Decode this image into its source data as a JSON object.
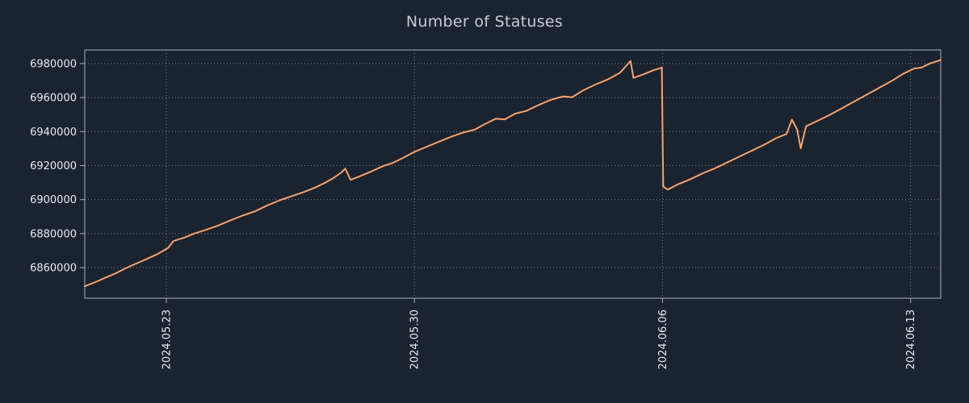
{
  "colors": {
    "background": "#1a2330",
    "frame": "#a8b0ba",
    "grid": "#9aa3ad",
    "tick_text": "#e8ecf0",
    "title_text": "#c6ccd4",
    "line": "#f8a269"
  },
  "chart_data": {
    "type": "line",
    "title": "Number of Statuses",
    "xlabel": "",
    "ylabel": "",
    "legend": false,
    "grid": "dotted",
    "x_unit": "days since 2024-05-21 00:00",
    "xlim": [
      -0.3,
      23.85
    ],
    "ylim": [
      6842000,
      6988000
    ],
    "y_ticks": [
      6860000,
      6880000,
      6900000,
      6920000,
      6940000,
      6960000,
      6980000
    ],
    "x_ticks": [
      {
        "pos": 2,
        "label": "2024.05.23"
      },
      {
        "pos": 9,
        "label": "2024.05.30"
      },
      {
        "pos": 16,
        "label": "2024.06.06"
      },
      {
        "pos": 23,
        "label": "2024.06.13"
      }
    ],
    "series": [
      {
        "name": "statuses",
        "color": "#f8a269",
        "points": [
          [
            -0.3,
            6849000
          ],
          [
            0.0,
            6851500
          ],
          [
            0.25,
            6853800
          ],
          [
            0.55,
            6856400
          ],
          [
            0.85,
            6859600
          ],
          [
            1.15,
            6862400
          ],
          [
            1.45,
            6865100
          ],
          [
            1.75,
            6868000
          ],
          [
            2.05,
            6871600
          ],
          [
            2.2,
            6875600
          ],
          [
            2.5,
            6877600
          ],
          [
            2.8,
            6880100
          ],
          [
            3.1,
            6882100
          ],
          [
            3.45,
            6884600
          ],
          [
            3.8,
            6887700
          ],
          [
            4.15,
            6890600
          ],
          [
            4.5,
            6893100
          ],
          [
            4.85,
            6896600
          ],
          [
            5.2,
            6899600
          ],
          [
            5.55,
            6902100
          ],
          [
            5.9,
            6904600
          ],
          [
            6.2,
            6907100
          ],
          [
            6.5,
            6910100
          ],
          [
            6.75,
            6913100
          ],
          [
            6.95,
            6916200
          ],
          [
            7.05,
            6918200
          ],
          [
            7.2,
            6911600
          ],
          [
            7.5,
            6914100
          ],
          [
            7.8,
            6916700
          ],
          [
            8.1,
            6919600
          ],
          [
            8.4,
            6921700
          ],
          [
            8.7,
            6924700
          ],
          [
            9.0,
            6928100
          ],
          [
            9.35,
            6931100
          ],
          [
            9.7,
            6934100
          ],
          [
            10.05,
            6937100
          ],
          [
            10.4,
            6939600
          ],
          [
            10.7,
            6941100
          ],
          [
            11.0,
            6944600
          ],
          [
            11.3,
            6947600
          ],
          [
            11.55,
            6947200
          ],
          [
            11.85,
            6950600
          ],
          [
            12.15,
            6952100
          ],
          [
            12.5,
            6955600
          ],
          [
            12.85,
            6958700
          ],
          [
            13.2,
            6960700
          ],
          [
            13.45,
            6960200
          ],
          [
            13.75,
            6964100
          ],
          [
            14.1,
            6967600
          ],
          [
            14.45,
            6970600
          ],
          [
            14.8,
            6974600
          ],
          [
            15.1,
            6981500
          ],
          [
            15.18,
            6971600
          ],
          [
            15.45,
            6973600
          ],
          [
            15.75,
            6976100
          ],
          [
            15.98,
            6977600
          ],
          [
            16.02,
            6907600
          ],
          [
            16.15,
            6905900
          ],
          [
            16.45,
            6909100
          ],
          [
            16.8,
            6912100
          ],
          [
            17.15,
            6915600
          ],
          [
            17.5,
            6918600
          ],
          [
            17.85,
            6922100
          ],
          [
            18.2,
            6925600
          ],
          [
            18.55,
            6929100
          ],
          [
            18.9,
            6932600
          ],
          [
            19.2,
            6936100
          ],
          [
            19.5,
            6938600
          ],
          [
            19.65,
            6947100
          ],
          [
            19.8,
            6941100
          ],
          [
            19.9,
            6930100
          ],
          [
            20.05,
            6943100
          ],
          [
            20.35,
            6946100
          ],
          [
            20.7,
            6949600
          ],
          [
            21.05,
            6953600
          ],
          [
            21.4,
            6957600
          ],
          [
            21.75,
            6961600
          ],
          [
            22.1,
            6965600
          ],
          [
            22.45,
            6969600
          ],
          [
            22.8,
            6974100
          ],
          [
            23.1,
            6977100
          ],
          [
            23.3,
            6977600
          ],
          [
            23.55,
            6980100
          ],
          [
            23.85,
            6982100
          ]
        ]
      }
    ]
  }
}
